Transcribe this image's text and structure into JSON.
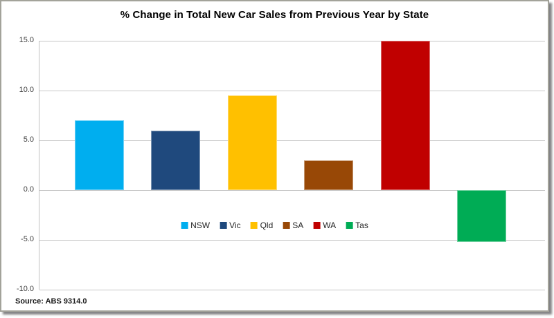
{
  "source_note": "Source: ABS 9314.0",
  "chart_data": {
    "type": "bar",
    "title": "% Change in Total New Car Sales from Previous Year by State",
    "categories": [
      "NSW",
      "Vic",
      "Qld",
      "SA",
      "WA",
      "Tas"
    ],
    "values": [
      7.0,
      6.0,
      9.5,
      3.0,
      15.0,
      -5.2
    ],
    "bar_colors": [
      "#00AEEF",
      "#1F497D",
      "#FFC000",
      "#984806",
      "#C00000",
      "#00AC55"
    ],
    "xlabel": "",
    "ylabel": "",
    "ylim": [
      -10.0,
      15.0
    ],
    "yticks": [
      15.0,
      10.0,
      5.0,
      0.0,
      -5.0,
      -10.0
    ],
    "ytick_labels": [
      "15.0",
      "10.0",
      "5.0",
      "0.0",
      "-5.0",
      "-10.0"
    ],
    "grid": true,
    "legend_position": "inside-bottom-center",
    "legend_entries": [
      "NSW",
      "Vic",
      "Qld",
      "SA",
      "WA",
      "Tas"
    ]
  },
  "style_colors": {
    "gridline": "#c6c6c6",
    "axis_line": "#bfbfbf",
    "title_text": "#000000",
    "tick_text": "#404040",
    "legend_text": "#262626"
  }
}
